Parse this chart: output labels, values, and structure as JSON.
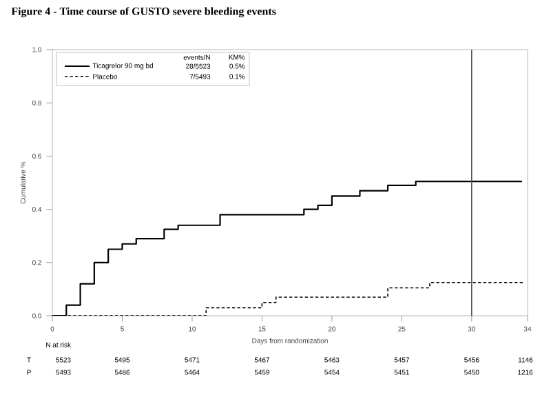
{
  "chart_data": {
    "type": "step",
    "title": "Figure 4 - Time course of GUSTO severe bleeding events",
    "xlabel": "Days from randomization",
    "ylabel": "Cumulative %",
    "xlim": [
      0,
      34
    ],
    "ylim": [
      0,
      1.0
    ],
    "xticks": [
      0,
      5,
      10,
      15,
      20,
      25,
      30,
      34
    ],
    "yticks": [
      {
        "value": 0,
        "label": "0.0"
      },
      {
        "value": 0.2,
        "label": "0.2"
      },
      {
        "value": 0.4,
        "label": "0.4"
      },
      {
        "value": 0.6,
        "label": "0.6"
      },
      {
        "value": 0.8,
        "label": "0.8"
      },
      {
        "value": 1.0,
        "label": "1.0"
      }
    ],
    "grid": false,
    "legend": "top left",
    "series": [
      {
        "name": "Ticagrelor 90 mg bd",
        "color": "#000000",
        "line_style": "solid",
        "x": [
          0,
          1,
          2,
          3,
          4,
          5,
          6,
          8,
          9,
          12,
          18,
          19,
          20,
          22,
          24,
          26,
          33.6
        ],
        "values": [
          0,
          0.04,
          0.12,
          0.2,
          0.25,
          0.27,
          0.29,
          0.325,
          0.34,
          0.38,
          0.4,
          0.415,
          0.45,
          0.47,
          0.49,
          0.505,
          0.505
        ]
      },
      {
        "name": "Placebo",
        "color": "#000000",
        "line_style": "dashed",
        "x": [
          0,
          11,
          15,
          16,
          24,
          27,
          33.7
        ],
        "values": [
          0,
          0.03,
          0.05,
          0.07,
          0.105,
          0.125,
          0.125
        ]
      }
    ],
    "ref_lines": [
      {
        "axis": "x",
        "value": 30,
        "color": "#555555"
      }
    ],
    "annotations": [
      "events/N",
      "KM%",
      "28/5523",
      "0.5%",
      "7/5493",
      "0.1%",
      "N at risk",
      "T",
      "P",
      "5523",
      "5495",
      "5471",
      "5467",
      "5463",
      "5457",
      "5456",
      "1146",
      "5493",
      "5486",
      "5464",
      "5459",
      "5454",
      "5451",
      "5450",
      "1216"
    ]
  }
}
